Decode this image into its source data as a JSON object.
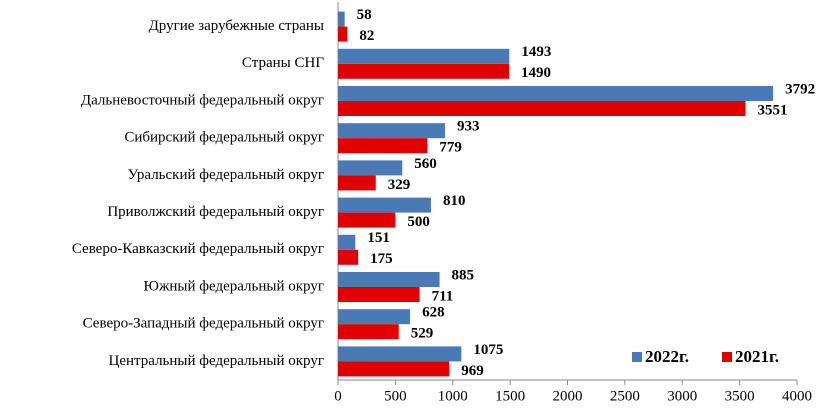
{
  "chart_data": {
    "type": "bar",
    "orientation": "horizontal",
    "categories": [
      "Другие зарубежные страны",
      "Страны СНГ",
      "Дальневосточный федеральный округ",
      "Сибирский федеральный округ",
      "Уральский федеральный округ",
      "Приволжский федеральный округ",
      "Северо-Кавказский федеральный округ",
      "Южный федеральный округ",
      "Северо-Западный федеральный округ",
      "Центральный федеральный округ"
    ],
    "series": [
      {
        "name": "2022г.",
        "color": "#4a7ab5",
        "values": [
          58,
          1493,
          3792,
          933,
          560,
          810,
          151,
          885,
          628,
          1075
        ]
      },
      {
        "name": "2021г.",
        "color": "#e00000",
        "values": [
          82,
          1490,
          3551,
          779,
          329,
          500,
          175,
          711,
          529,
          969
        ]
      }
    ],
    "xlim": [
      0,
      4000
    ],
    "xticks": [
      0,
      500,
      1000,
      1500,
      2000,
      2500,
      3000,
      3500,
      4000
    ],
    "legend": "lower right",
    "data_labels": true
  }
}
